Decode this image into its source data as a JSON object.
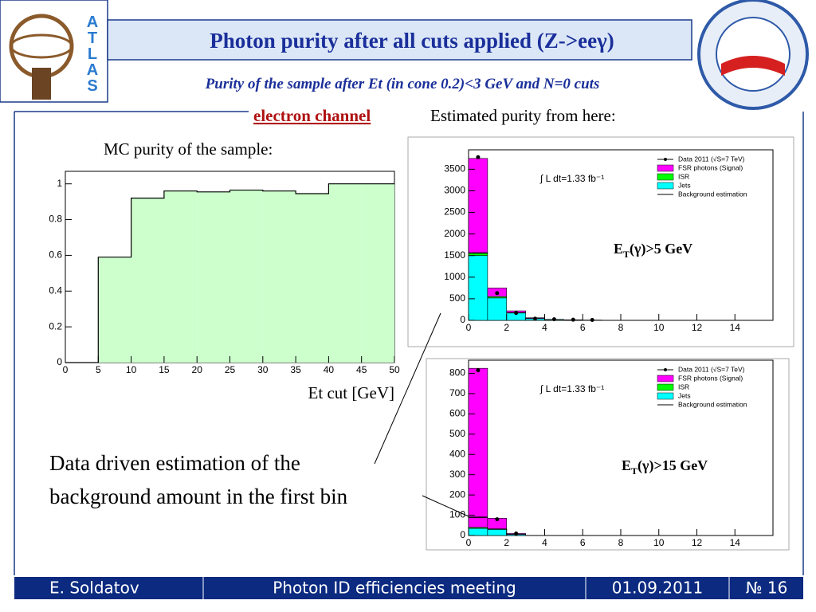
{
  "title": "Photon purity after all cuts applied (Z->eeγ)",
  "subtitle": "Purity of the sample after Et (in cone 0.2)<3 GeV and N=0 cuts",
  "channel": "electron channel",
  "estimated_label": "Estimated purity from here:",
  "logo_letters": [
    "A",
    "T",
    "L",
    "A",
    "S"
  ],
  "note_lines": [
    "Data driven estimation of the",
    "background amount in the first bin"
  ],
  "footer": [
    "E. Soldatov",
    "Photon ID efficiencies meeting",
    "01.09.2011",
    "№ 16"
  ],
  "chart_data": [
    {
      "type": "histogram",
      "title": "MC purity of the sample:",
      "xlabel": "Et cut [GeV]",
      "bins": [
        0,
        5,
        10,
        15,
        20,
        25,
        30,
        35,
        40,
        45,
        50
      ],
      "values": [
        0,
        0.59,
        0.92,
        0.96,
        0.955,
        0.965,
        0.96,
        0.945,
        1,
        1
      ],
      "color": "#ccffcc",
      "xlim": [
        0,
        50
      ],
      "xticks": [
        0,
        5,
        10,
        15,
        20,
        25,
        30,
        35,
        40,
        45,
        50
      ],
      "ylim": [
        0,
        1.07
      ],
      "yticks": [
        0,
        0.2,
        0.4,
        0.6,
        0.8,
        1
      ]
    },
    {
      "type": "stacked_histogram",
      "annotation": "∫ L dt=1.33 fb⁻¹",
      "label": {
        "base": "E",
        "sub": "T",
        "rest": "(γ)>5 GeV"
      },
      "bins": [
        0,
        1,
        2,
        3,
        4,
        5,
        6,
        7,
        8
      ],
      "series": [
        {
          "name": "Jets",
          "color": "#00ffff",
          "values": [
            1500,
            520,
            170,
            40,
            15,
            8,
            5,
            2
          ]
        },
        {
          "name": "ISR",
          "color": "#00ff00",
          "values": [
            60,
            30,
            10,
            5,
            2,
            1,
            0,
            0
          ]
        },
        {
          "name": "FSR photons (Signal)",
          "color": "#ff00ff",
          "values": [
            2190,
            200,
            40,
            15,
            5,
            2,
            1,
            0
          ]
        }
      ],
      "data": {
        "name": "Data 2011 (√S=7 TeV)",
        "values": [
          3780,
          630,
          170,
          40,
          25,
          15,
          10,
          null
        ]
      },
      "background": {
        "name": "Background estimation",
        "values": [
          1560,
          null,
          null,
          null,
          null,
          null,
          null,
          null
        ]
      },
      "xlim": [
        0,
        16
      ],
      "xticks": [
        0,
        2,
        4,
        6,
        8,
        10,
        12,
        14
      ],
      "ylim": [
        0,
        3950
      ],
      "yticks": [
        0,
        500,
        1000,
        1500,
        2000,
        2500,
        3000,
        3500
      ]
    },
    {
      "type": "stacked_histogram",
      "annotation": "∫ L dt=1.33 fb⁻¹",
      "label": {
        "base": "E",
        "sub": "T",
        "rest": "(γ)>15 GeV"
      },
      "bins": [
        0,
        1,
        2,
        3
      ],
      "series": [
        {
          "name": "Jets",
          "color": "#00ffff",
          "values": [
            35,
            30,
            5
          ]
        },
        {
          "name": "ISR",
          "color": "#00ff00",
          "values": [
            5,
            3,
            1
          ]
        },
        {
          "name": "FSR photons (Signal)",
          "color": "#ff00ff",
          "values": [
            785,
            52,
            4
          ]
        }
      ],
      "data": {
        "name": "Data 2011 (√S=7 TeV)",
        "values": [
          815,
          80,
          10
        ]
      },
      "background": {
        "name": "Background estimation",
        "values": [
          90,
          null,
          null
        ]
      },
      "xlim": [
        0,
        16
      ],
      "xticks": [
        0,
        2,
        4,
        6,
        8,
        10,
        12,
        14
      ],
      "ylim": [
        0,
        865
      ],
      "yticks": [
        0,
        100,
        200,
        300,
        400,
        500,
        600,
        700,
        800
      ]
    }
  ]
}
